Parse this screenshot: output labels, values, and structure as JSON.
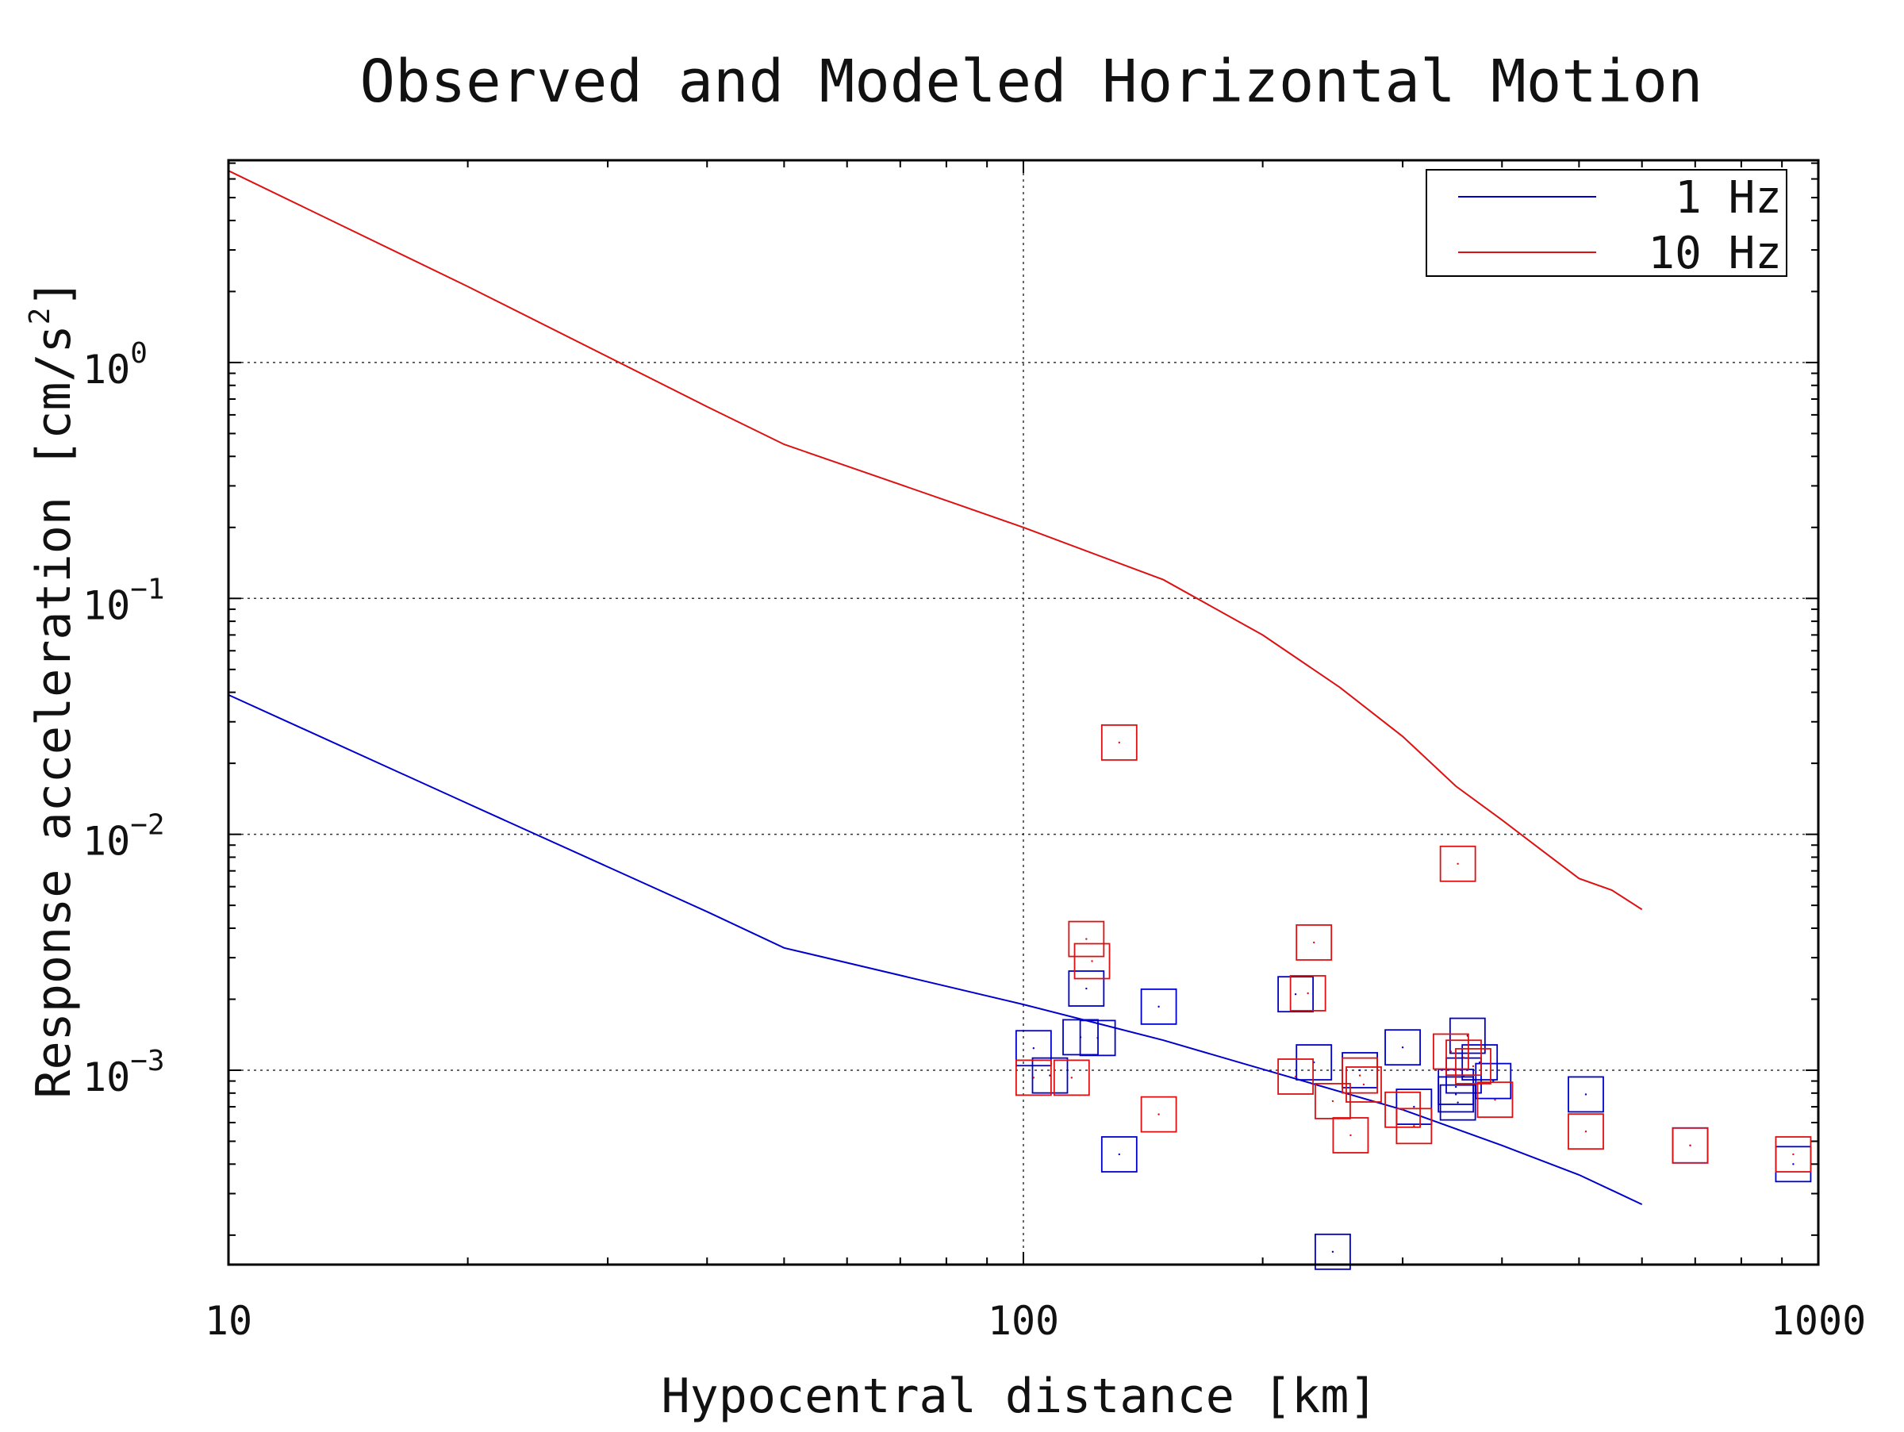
{
  "chart_data": {
    "type": "scatter",
    "title": "Observed and Modeled Horizontal Motion",
    "xlabel": "Hypocentral distance [km]",
    "ylabel": "Response acceleration [cm/s2]",
    "ylabel_parts": {
      "main": "Response acceleration [cm/s",
      "sup": "2",
      "end": "]"
    },
    "x_scale": "log",
    "y_scale": "log",
    "xlim": [
      10,
      1000
    ],
    "ylim": [
      0.00015,
      7.2
    ],
    "x_ticks": [
      {
        "value": 10,
        "label": "10"
      },
      {
        "value": 100,
        "label": "100"
      },
      {
        "value": 1000,
        "label": "1000"
      }
    ],
    "y_ticks": [
      {
        "value": 0.001,
        "base": "10",
        "exp": "−3"
      },
      {
        "value": 0.01,
        "base": "10",
        "exp": "−2"
      },
      {
        "value": 0.1,
        "base": "10",
        "exp": "−1"
      },
      {
        "value": 1,
        "base": "10",
        "exp": "0"
      }
    ],
    "grid": true,
    "legend_position": "top-right",
    "colors": {
      "blue": "#0000cc",
      "red": "#dd1111"
    },
    "series": [
      {
        "name": "1 Hz",
        "color": "#0000cc",
        "line": {
          "x": [
            10,
            20,
            40,
            50,
            100,
            150,
            200,
            300,
            400,
            500,
            600
          ],
          "y": [
            0.039,
            0.0135,
            0.0047,
            0.0033,
            0.0019,
            0.00134,
            0.00101,
            0.00068,
            0.00048,
            0.00036,
            0.00027
          ]
        },
        "observed": {
          "x": [
            103,
            108,
            118,
            120,
            124,
            132,
            148,
            220,
            232,
            245,
            265,
            300,
            310,
            350,
            350,
            352,
            358,
            362,
            375,
            390,
            510,
            690,
            930
          ],
          "y": [
            0.00124,
            0.00095,
            0.00138,
            0.00222,
            0.00137,
            0.00044,
            0.00186,
            0.0021,
            0.00108,
            0.00017,
            0.001,
            0.00125,
            0.0007,
            0.00085,
            0.00079,
            0.00073,
            0.00095,
            0.0014,
            0.00108,
            0.0009,
            0.00079,
            0.00048,
            0.0004
          ]
        }
      },
      {
        "name": "10 Hz",
        "color": "#dd1111",
        "line": {
          "x": [
            10,
            20,
            40,
            50,
            80,
            100,
            150,
            200,
            250,
            300,
            350,
            400,
            450,
            500,
            550,
            600
          ],
          "y": [
            6.5,
            2.1,
            0.65,
            0.45,
            0.26,
            0.2,
            0.12,
            0.07,
            0.042,
            0.026,
            0.016,
            0.0115,
            0.0085,
            0.0065,
            0.0058,
            0.0048
          ]
        },
        "observed": {
          "x": [
            103,
            115,
            120,
            122,
            132,
            148,
            220,
            228,
            232,
            245,
            258,
            265,
            268,
            300,
            310,
            345,
            352,
            358,
            368,
            392,
            510,
            690,
            930
          ],
          "y": [
            0.00093,
            0.00093,
            0.0036,
            0.0029,
            0.0245,
            0.00065,
            0.00094,
            0.00212,
            0.00348,
            0.00074,
            0.00053,
            0.00095,
            0.00087,
            0.00068,
            0.00058,
            0.0012,
            0.0075,
            0.00113,
            0.00104,
            0.00075,
            0.00055,
            0.00048,
            0.00044
          ]
        }
      }
    ]
  }
}
